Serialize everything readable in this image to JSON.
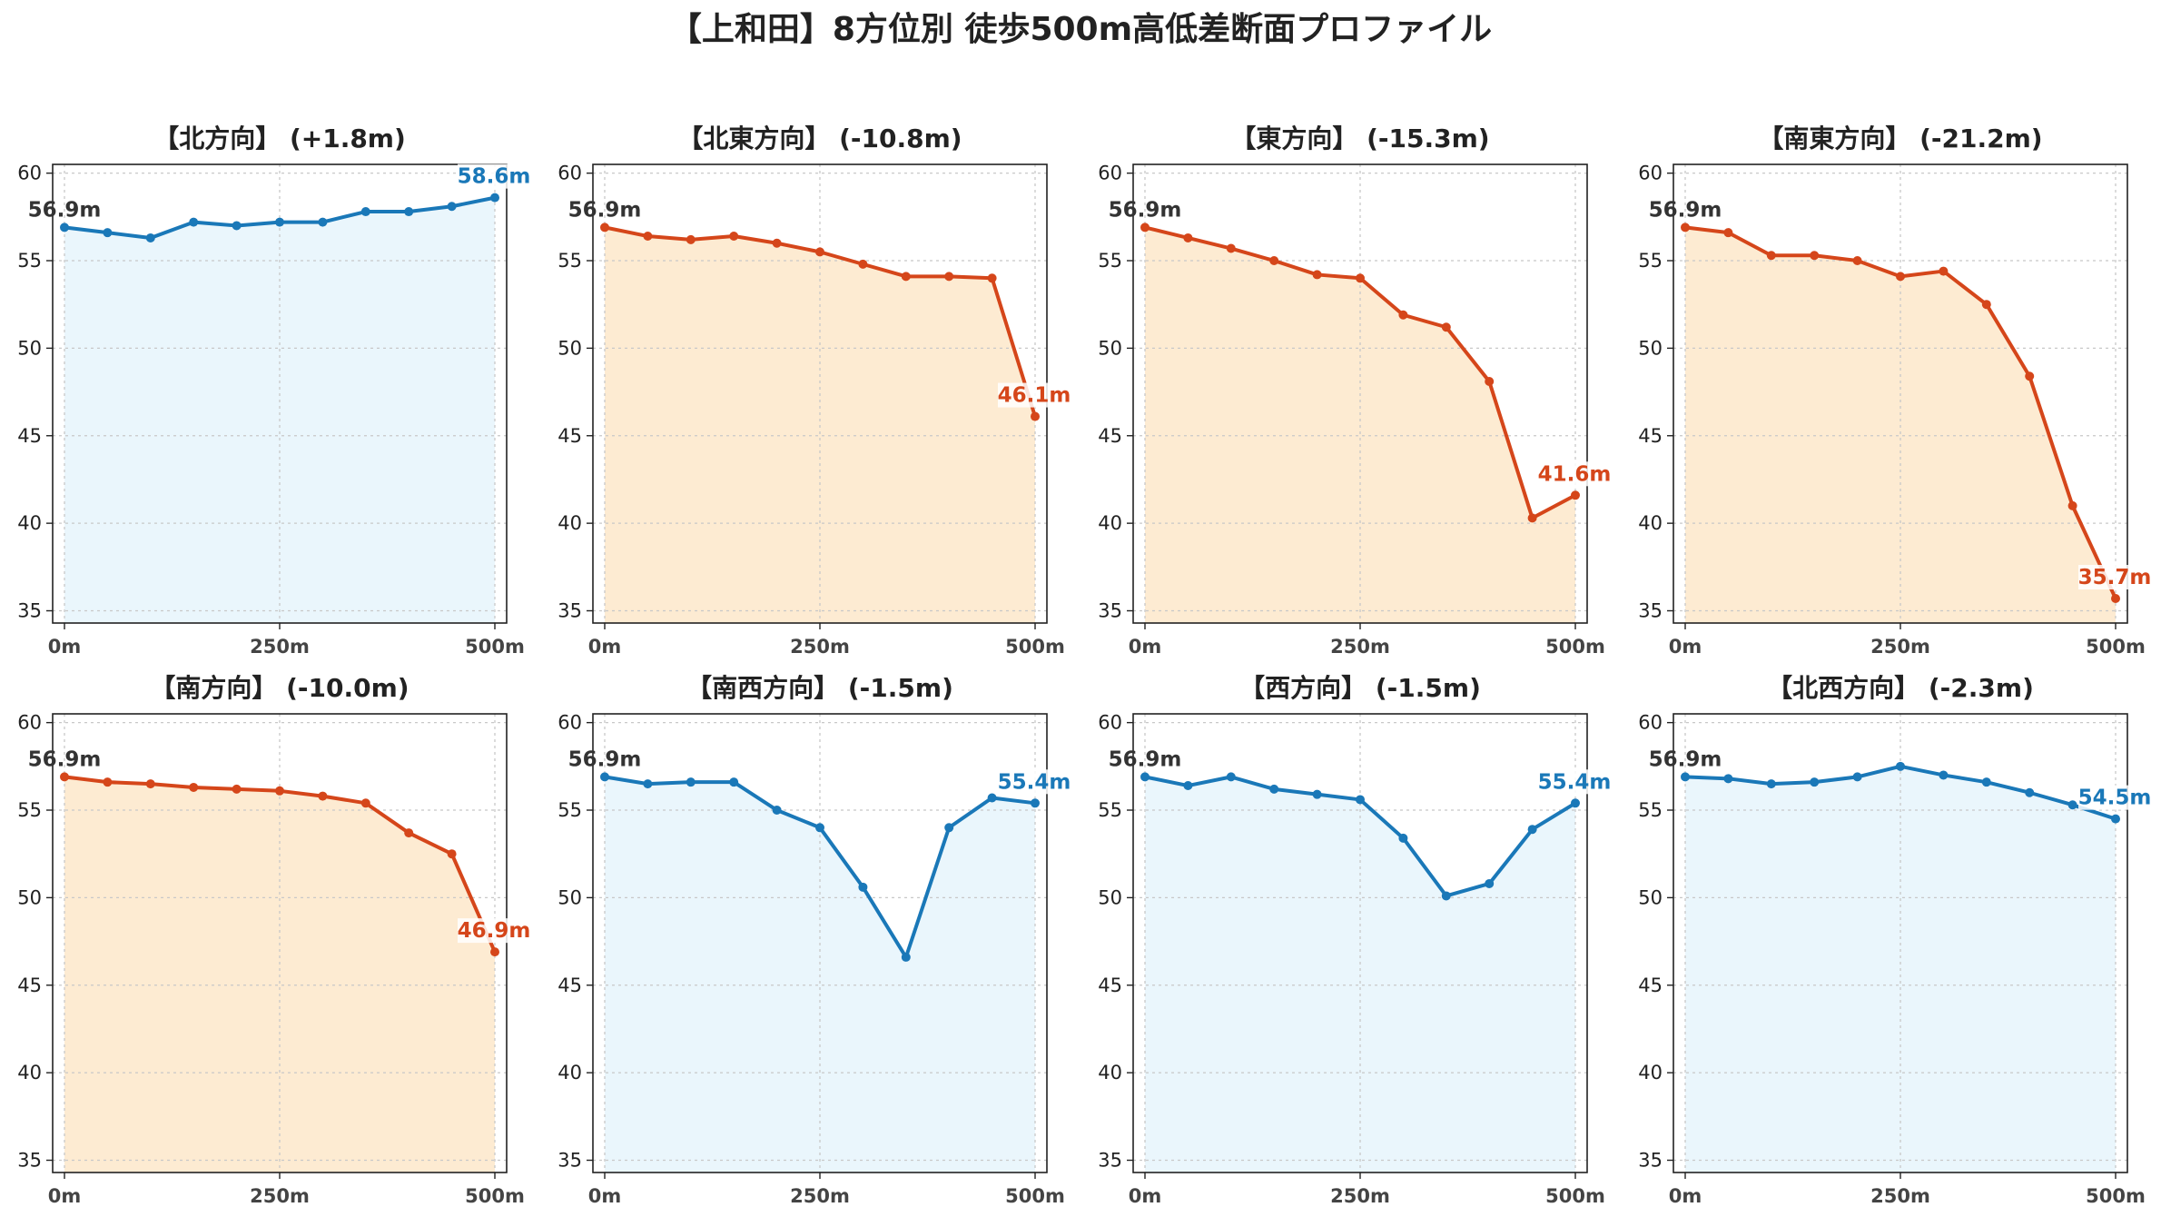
{
  "figure": {
    "title": "【上和田】8方位別 徒歩500m高低差断面プロファイル"
  },
  "colors": {
    "up_line": "#1a78b8",
    "up_fill": "#eaf6fc",
    "down_line": "#d5461a",
    "down_fill": "#fdebd2",
    "start_label": "#333333"
  },
  "axes": {
    "xlim": [
      0,
      500
    ],
    "ylim": [
      34.3,
      60.5
    ],
    "xticks": [
      0,
      250,
      500
    ],
    "xtick_labels": [
      "0m",
      "250m",
      "500m"
    ],
    "yticks": [
      35,
      40,
      45,
      50,
      55,
      60
    ],
    "ytick_labels": [
      "35",
      "40",
      "45",
      "50",
      "55",
      "60"
    ],
    "grid": true
  },
  "chart_data": [
    {
      "type": "area",
      "title": "【北方向】 (+1.8m)",
      "trend": "up",
      "x": [
        0,
        50,
        100,
        150,
        200,
        250,
        300,
        350,
        400,
        450,
        500
      ],
      "y": [
        56.9,
        56.6,
        56.3,
        57.2,
        57.0,
        57.2,
        57.2,
        57.8,
        57.8,
        58.1,
        58.6
      ],
      "start_label": "56.9m",
      "end_label": "58.6m"
    },
    {
      "type": "area",
      "title": "【北東方向】 (-10.8m)",
      "trend": "down",
      "x": [
        0,
        50,
        100,
        150,
        200,
        250,
        300,
        350,
        400,
        450,
        500
      ],
      "y": [
        56.9,
        56.4,
        56.2,
        56.4,
        56.0,
        55.5,
        54.8,
        54.1,
        54.1,
        54.0,
        46.1
      ],
      "start_label": "56.9m",
      "end_label": "46.1m"
    },
    {
      "type": "area",
      "title": "【東方向】 (-15.3m)",
      "trend": "down",
      "x": [
        0,
        50,
        100,
        150,
        200,
        250,
        300,
        350,
        400,
        450,
        500
      ],
      "y": [
        56.9,
        56.3,
        55.7,
        55.0,
        54.2,
        54.0,
        51.9,
        51.2,
        48.1,
        40.3,
        41.6
      ],
      "start_label": "56.9m",
      "end_label": "41.6m"
    },
    {
      "type": "area",
      "title": "【南東方向】 (-21.2m)",
      "trend": "down",
      "x": [
        0,
        50,
        100,
        150,
        200,
        250,
        300,
        350,
        400,
        450,
        500
      ],
      "y": [
        56.9,
        56.6,
        55.3,
        55.3,
        55.0,
        54.1,
        54.4,
        52.5,
        48.4,
        41.0,
        35.7
      ],
      "start_label": "56.9m",
      "end_label": "35.7m"
    },
    {
      "type": "area",
      "title": "【南方向】 (-10.0m)",
      "trend": "down",
      "x": [
        0,
        50,
        100,
        150,
        200,
        250,
        300,
        350,
        400,
        450,
        500
      ],
      "y": [
        56.9,
        56.6,
        56.5,
        56.3,
        56.2,
        56.1,
        55.8,
        55.4,
        53.7,
        52.5,
        46.9
      ],
      "start_label": "56.9m",
      "end_label": "46.9m"
    },
    {
      "type": "area",
      "title": "【南西方向】 (-1.5m)",
      "trend": "up",
      "x": [
        0,
        50,
        100,
        150,
        200,
        250,
        300,
        350,
        400,
        450,
        500
      ],
      "y": [
        56.9,
        56.5,
        56.6,
        56.6,
        55.0,
        54.0,
        50.6,
        46.6,
        54.0,
        55.7,
        55.4
      ],
      "start_label": "56.9m",
      "end_label": "55.4m"
    },
    {
      "type": "area",
      "title": "【西方向】 (-1.5m)",
      "trend": "up",
      "x": [
        0,
        50,
        100,
        150,
        200,
        250,
        300,
        350,
        400,
        450,
        500
      ],
      "y": [
        56.9,
        56.4,
        56.9,
        56.2,
        55.9,
        55.6,
        53.4,
        50.1,
        50.8,
        53.9,
        55.4
      ],
      "start_label": "56.9m",
      "end_label": "55.4m"
    },
    {
      "type": "area",
      "title": "【北西方向】 (-2.3m)",
      "trend": "up",
      "x": [
        0,
        50,
        100,
        150,
        200,
        250,
        300,
        350,
        400,
        450,
        500
      ],
      "y": [
        56.9,
        56.8,
        56.5,
        56.6,
        56.9,
        57.5,
        57.0,
        56.6,
        56.0,
        55.3,
        54.5
      ],
      "start_label": "56.9m",
      "end_label": "54.5m"
    }
  ]
}
